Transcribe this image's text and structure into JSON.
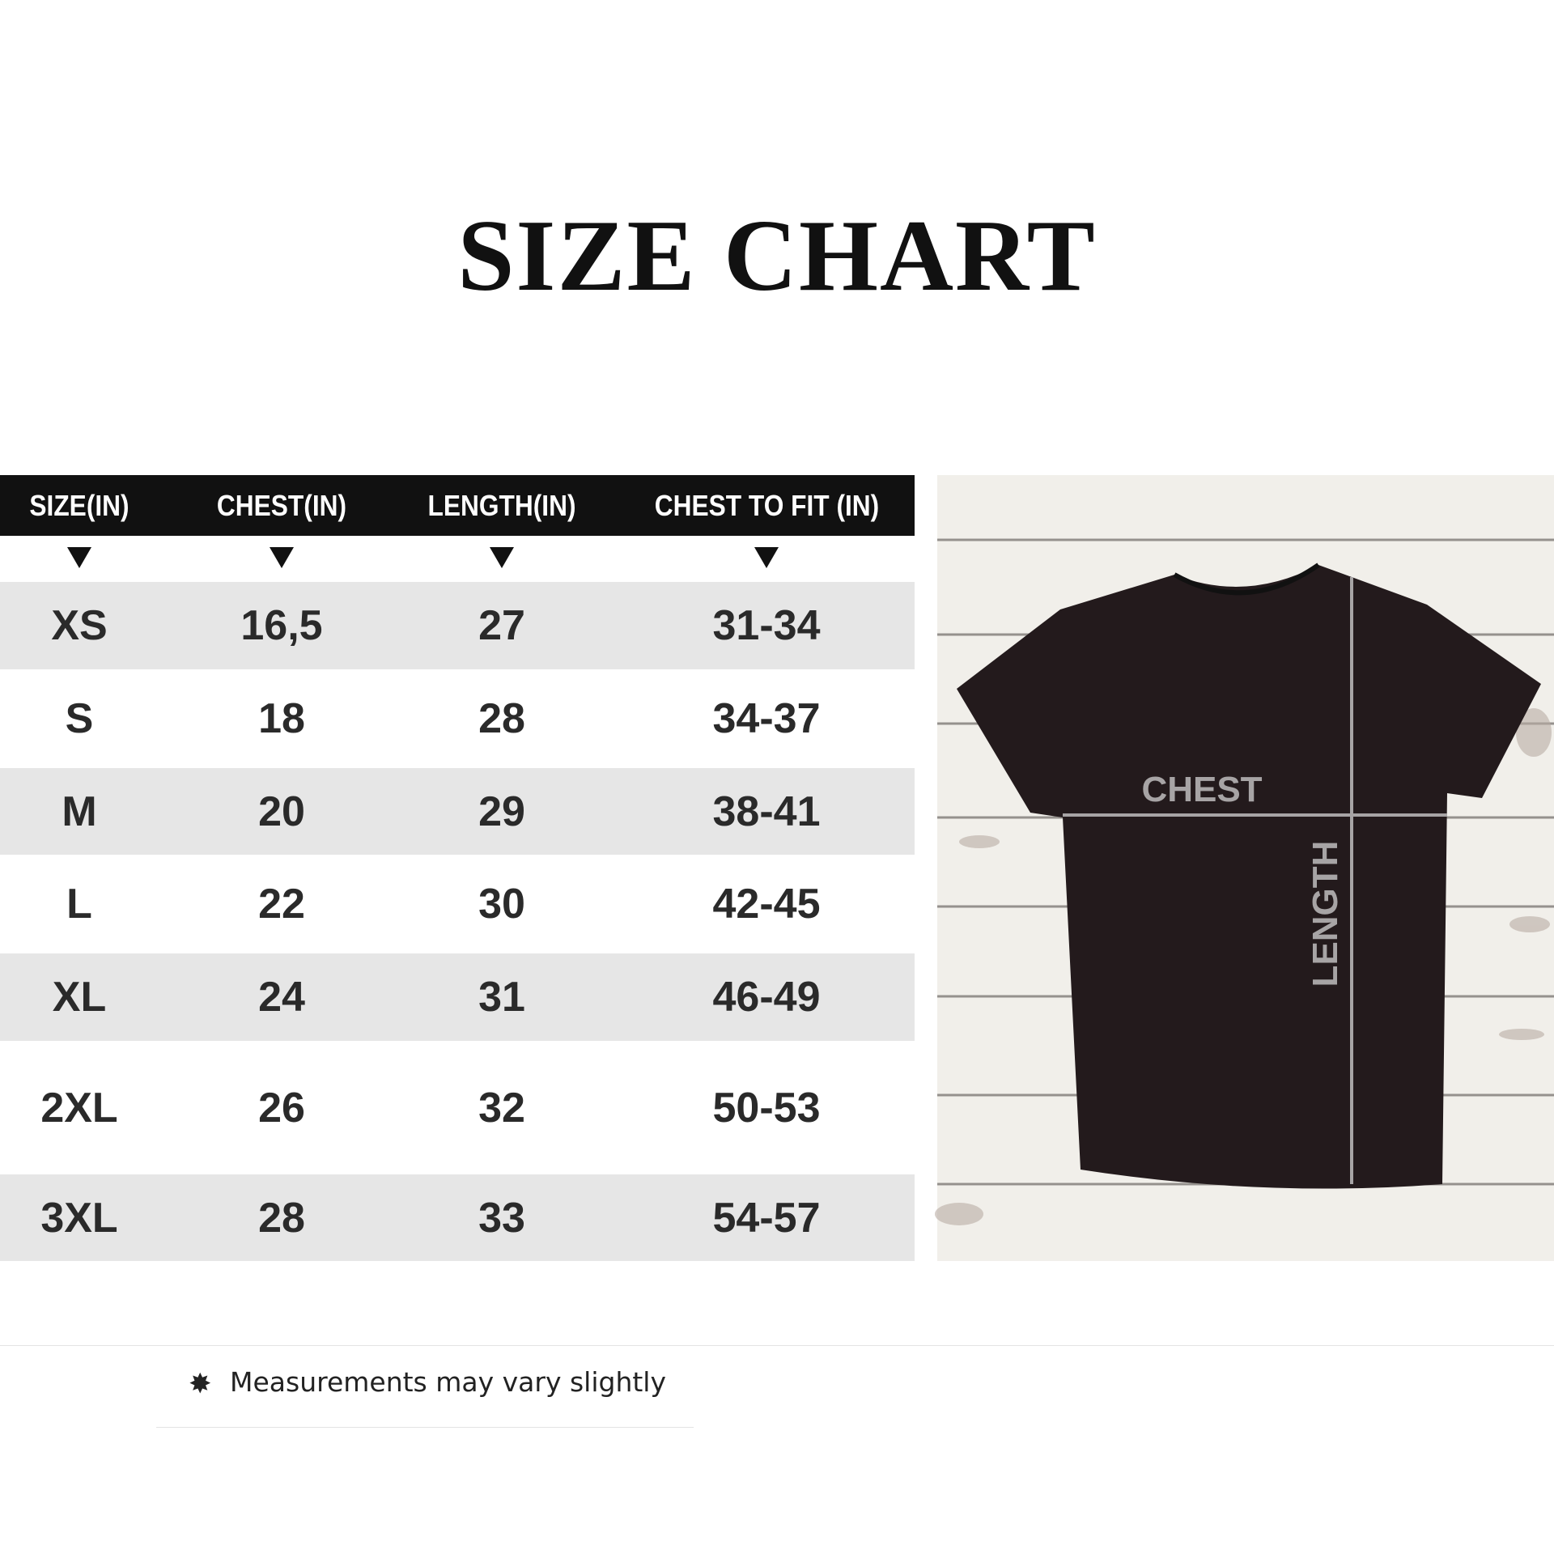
{
  "title": "SIZE CHART",
  "table": {
    "headers": [
      "SIZE(IN)",
      "CHEST(IN)",
      "LENGTH(IN)",
      "CHEST TO FIT (IN)"
    ],
    "rows": [
      [
        "XS",
        "16,5",
        "27",
        "31-34"
      ],
      [
        "S",
        "18",
        "28",
        "34-37"
      ],
      [
        "M",
        "20",
        "29",
        "38-41"
      ],
      [
        "L",
        "22",
        "30",
        "42-45"
      ],
      [
        "XL",
        "24",
        "31",
        "46-49"
      ],
      [
        "2XL",
        "26",
        "32",
        "50-53"
      ],
      [
        "3XL",
        "28",
        "33",
        "54-57"
      ]
    ]
  },
  "diagram": {
    "chest_label": "CHEST",
    "length_label": "LENGTH",
    "shirt_color": "#231a1c",
    "line_color": "#a7a4a5"
  },
  "footer": {
    "icon": "asterisk-star-icon",
    "note": "Measurements may vary slightly"
  }
}
